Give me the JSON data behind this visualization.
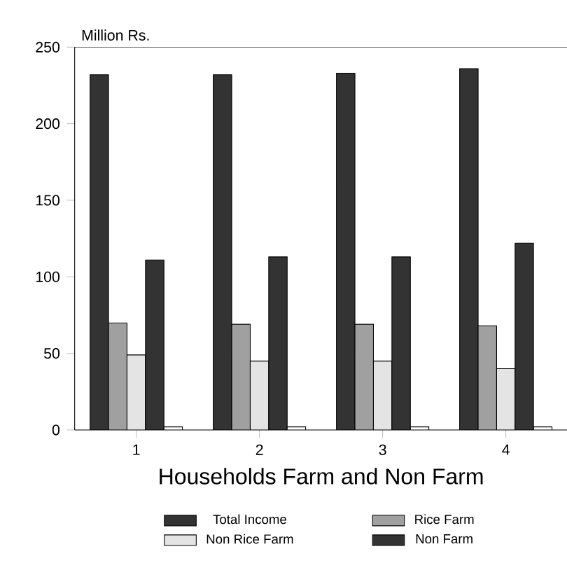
{
  "chart_data": {
    "type": "bar",
    "xlabel": "Households Farm and Non Farm",
    "ylabel": "Million Rs.",
    "categories": [
      "1",
      "2",
      "3",
      "4"
    ],
    "series": [
      {
        "name": "Total Income",
        "color": "#333333",
        "values": [
          232,
          232,
          233,
          236
        ]
      },
      {
        "name": "Rice Farm",
        "color": "#a0a0a0",
        "values": [
          70,
          69,
          69,
          68
        ]
      },
      {
        "name": "Non Rice Farm",
        "color": "#e4e4e4",
        "values": [
          49,
          45,
          45,
          40
        ]
      },
      {
        "name": "Non Farm",
        "color": "#333333",
        "values": [
          111,
          113,
          113,
          122
        ]
      },
      {
        "color": "#ffffff",
        "values": [
          2,
          2,
          2,
          2
        ]
      }
    ],
    "ylim": [
      0,
      250
    ],
    "yticks": [
      0,
      50,
      100,
      150,
      200,
      250
    ],
    "legend": "bottom"
  }
}
